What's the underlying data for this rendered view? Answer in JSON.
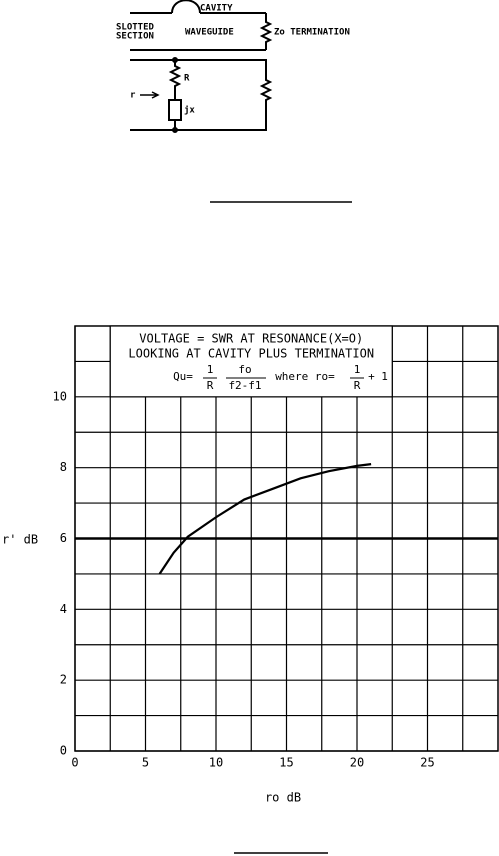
{
  "diagram": {
    "cavity": "CAVITY",
    "slotted": [
      "SLOTTED",
      "SECTION"
    ],
    "waveguide": "WAVEGUIDE",
    "termination": "Zo TERMINATION",
    "r_label": "R",
    "jx_label": "jx",
    "arrow_label": "r"
  },
  "chart_data": {
    "type": "line",
    "annotation": {
      "line1": "VOLTAGE = SWR AT RESONANCE(X=O)",
      "line2": "LOOKING AT CAVITY PLUS TERMINATION",
      "qu": "Qu=",
      "one1": "1",
      "r1": "R",
      "fo": "fo",
      "f2f1": "f2-f1",
      "where": "where ro=",
      "one2": "1",
      "r2": "R",
      "plus": "+ 1"
    },
    "x_label": "ro dB",
    "y_label": "r' dB",
    "x": [
      6,
      7,
      8,
      10,
      12,
      14,
      16,
      18,
      20,
      21
    ],
    "series": [
      {
        "color": "#000000",
        "values": [
          5,
          5.6,
          6.05,
          6.6,
          7.1,
          7.4,
          7.7,
          7.9,
          8.05,
          8.1
        ]
      }
    ],
    "xlim": [
      0,
      30
    ],
    "ylim": [
      0,
      12
    ],
    "xticks": [
      0,
      5,
      10,
      15,
      20,
      25
    ],
    "yticks": [
      0,
      2,
      4,
      6,
      8,
      10
    ],
    "xminor": [
      2.5,
      7.5,
      12.5,
      17.5,
      22.5,
      27.5
    ],
    "yminor": [
      1,
      3,
      5,
      7,
      9,
      11
    ],
    "hline": 6,
    "grid": true
  }
}
